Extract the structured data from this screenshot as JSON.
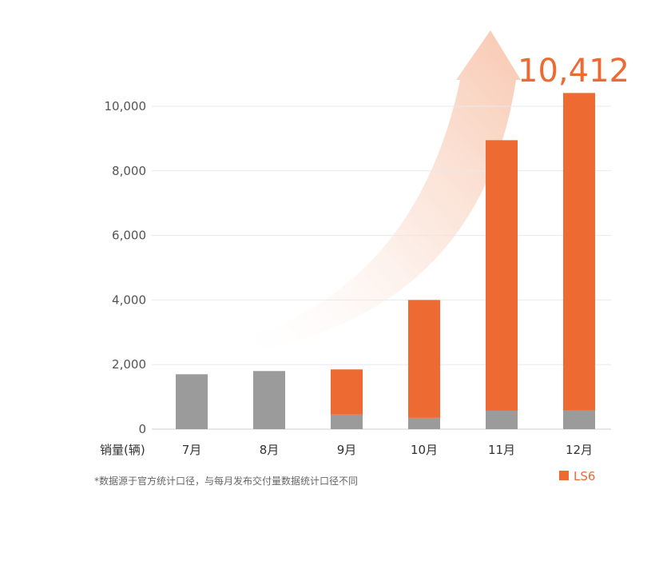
{
  "chart_data": {
    "type": "bar",
    "stacked": true,
    "categories": [
      "7月",
      "8月",
      "9月",
      "10月",
      "11月",
      "12月"
    ],
    "series": [
      {
        "name": "",
        "color": "#9b9b9b",
        "values": [
          1700,
          1800,
          450,
          350,
          570,
          580
        ]
      },
      {
        "name": "LS6",
        "color": "#ee6a33",
        "values": [
          0,
          0,
          1400,
          3650,
          8380,
          9832
        ]
      }
    ],
    "totals": [
      1700,
      1800,
      1850,
      4000,
      8950,
      10412
    ],
    "ylim": [
      0,
      10412
    ],
    "yticks": [
      0,
      2000,
      4000,
      6000,
      8000,
      10000
    ],
    "ytick_labels": [
      "0",
      "2,000",
      "4,000",
      "6,000",
      "8,000",
      "10,000"
    ],
    "xlabel": "销量(辆)",
    "ylabel": "",
    "highlight_value": "10,412",
    "grid": true,
    "legend": {
      "position": "bottom-right",
      "label": "LS6"
    },
    "footnote": "*数据源于官方统计口径，与每月发布交付量数据统计口径不同"
  },
  "colors": {
    "accent": "#ee6a33",
    "gray_bar": "#9b9b9b",
    "grid": "#e8e8ee",
    "axis": "#cfcfd6"
  }
}
